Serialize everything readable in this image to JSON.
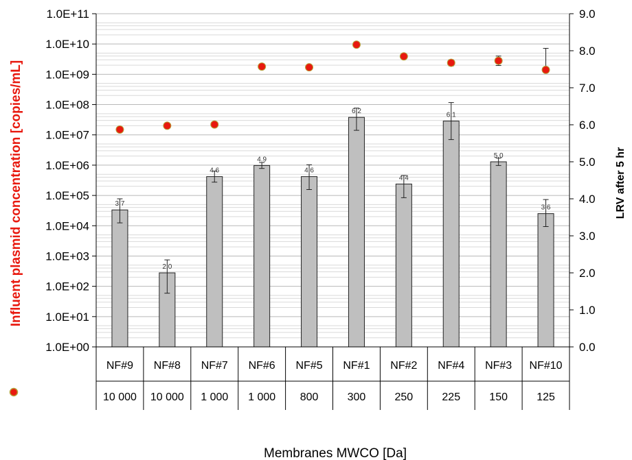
{
  "chart_data": {
    "type": "bar",
    "title": "",
    "xlabel": "Membranes MWCO [Da]",
    "ylabel_left": "Influent plasmid concentration [copies/mL]",
    "ylabel_right": "LRV after 5 hr",
    "y_left_scale": "log",
    "y_left_ticks": [
      "1.0E+00",
      "1.0E+01",
      "1.0E+02",
      "1.0E+03",
      "1.0E+04",
      "1.0E+05",
      "1.0E+06",
      "1.0E+07",
      "1.0E+08",
      "1.0E+09",
      "1.0E+10",
      "1.0E+11"
    ],
    "y_left_range": [
      1,
      100000000000
    ],
    "y_right_ticks": [
      "0.0",
      "1.0",
      "2.0",
      "3.0",
      "4.0",
      "5.0",
      "6.0",
      "7.0",
      "8.0",
      "9.0"
    ],
    "y_right_range": [
      0,
      9
    ],
    "grid": true,
    "categories": [
      "NF#9",
      "NF#8",
      "NF#7",
      "NF#6",
      "NF#5",
      "NF#1",
      "NF#2",
      "NF#4",
      "NF#3",
      "NF#10"
    ],
    "mwco": [
      "10 000",
      "10 000",
      "1 000",
      "1 000",
      "800",
      "300",
      "250",
      "225",
      "150",
      "125"
    ],
    "series": [
      {
        "kind": "bar",
        "axis": "right",
        "color": "#bfbfbf",
        "values": [
          3.7,
          2.0,
          4.6,
          4.9,
          4.6,
          6.2,
          4.4,
          6.1,
          5.0,
          3.6
        ],
        "error_low": [
          3.35,
          1.45,
          4.45,
          4.82,
          4.25,
          5.85,
          4.03,
          5.6,
          4.9,
          3.25
        ],
        "error_high": [
          4.0,
          2.35,
          4.75,
          4.98,
          4.92,
          6.45,
          4.63,
          6.6,
          5.1,
          3.98
        ],
        "data_labels": [
          "3.7",
          "2.0",
          "4.6",
          "4.9",
          "4.6",
          "6.2",
          "4.4",
          "6.1",
          "5.0",
          "3.6"
        ]
      },
      {
        "kind": "scatter",
        "axis": "left",
        "marker_color": "#e8190f",
        "marker_edge": "#b5a13a",
        "values": [
          15000000,
          20000000,
          22000000,
          1800000000,
          1700000000,
          9500000000,
          3900000000,
          2400000000,
          2800000000,
          1400000000
        ],
        "error_low": [
          null,
          null,
          null,
          null,
          null,
          null,
          null,
          1900000000,
          1950000000,
          null
        ],
        "error_high": [
          null,
          null,
          null,
          null,
          null,
          null,
          null,
          3000000000,
          4000000000,
          7200000000
        ]
      }
    ]
  }
}
